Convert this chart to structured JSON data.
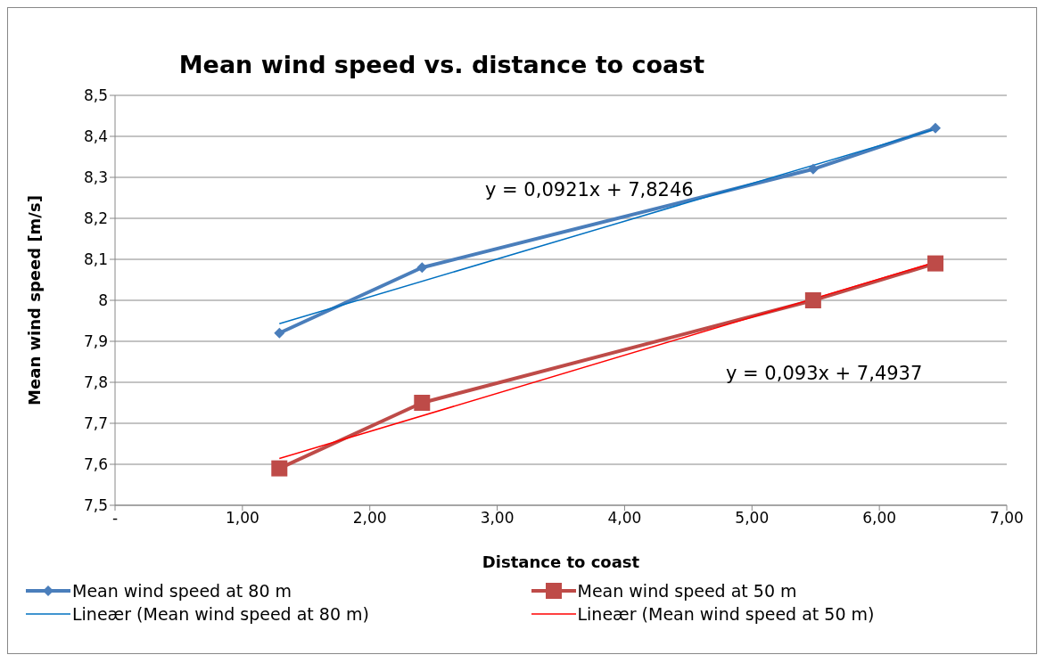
{
  "chart_data": {
    "type": "line",
    "title": "Mean wind speed  vs. distance to coast",
    "xlabel": "Distance to coast",
    "ylabel": "Mean wind speed [m/s]",
    "xlim": [
      0,
      7
    ],
    "xticks": [
      {
        "value": 0,
        "label": "-"
      },
      {
        "value": 1,
        "label": "1,00"
      },
      {
        "value": 2,
        "label": "2,00"
      },
      {
        "value": 3,
        "label": "3,00"
      },
      {
        "value": 4,
        "label": "4,00"
      },
      {
        "value": 5,
        "label": "5,00"
      },
      {
        "value": 6,
        "label": "6,00"
      },
      {
        "value": 7,
        "label": "7,00"
      }
    ],
    "ylim": [
      7.5,
      8.5
    ],
    "yticks": [
      {
        "value": 7.5,
        "label": "7,5"
      },
      {
        "value": 7.6,
        "label": "7,6"
      },
      {
        "value": 7.7,
        "label": "7,7"
      },
      {
        "value": 7.8,
        "label": "7,8"
      },
      {
        "value": 7.9,
        "label": "7,9"
      },
      {
        "value": 8,
        "label": "8"
      },
      {
        "value": 8.1,
        "label": "8,1"
      },
      {
        "value": 8.2,
        "label": "8,2"
      },
      {
        "value": 8.3,
        "label": "8,3"
      },
      {
        "value": 8.4,
        "label": "8,4"
      },
      {
        "value": 8.5,
        "label": "8,5"
      }
    ],
    "grid": "y",
    "legend": "bottom",
    "series": [
      {
        "name": "Mean wind speed at 80 m",
        "color": "#4a7ebb",
        "marker": "diamond",
        "x": [
          1.29,
          2.41,
          5.48,
          6.44
        ],
        "values": [
          7.92,
          8.08,
          8.32,
          8.42
        ]
      },
      {
        "name": "Mean wind speed at 50 m",
        "color": "#be4b48",
        "marker": "square",
        "x": [
          1.29,
          2.41,
          5.48,
          6.44
        ],
        "values": [
          7.59,
          7.75,
          8.0,
          8.09
        ]
      },
      {
        "name": "Lineær (Mean wind speed at 80 m)",
        "color": "#0070c0",
        "marker": "none",
        "x": [
          1.29,
          6.44
        ],
        "values": [
          7.943,
          8.418
        ]
      },
      {
        "name": "Lineær (Mean wind speed at 50 m)",
        "color": "#ff0000",
        "marker": "none",
        "x": [
          1.29,
          6.44
        ],
        "values": [
          7.614,
          8.093
        ]
      }
    ],
    "annotations": [
      "y = 0,0921x + 7,8246",
      "y = 0,093x + 7,4937"
    ]
  }
}
